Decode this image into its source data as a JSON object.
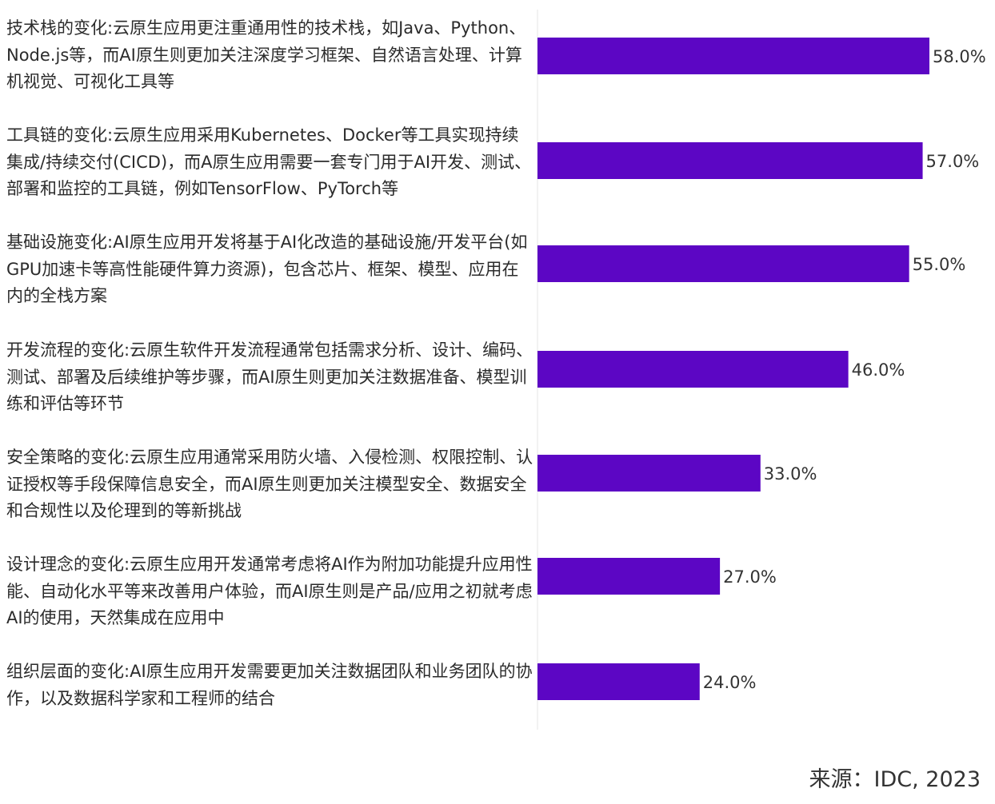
{
  "chart_data": {
    "type": "bar",
    "orientation": "horizontal",
    "categories": [
      "技术栈的变化:云原生应用更注重通用性的技术栈，如Java、Python、Node.js等，而AI原生则更加关注深度学习框架、自然语言处理、计算机视觉、可视化工具等",
      "工具链的变化:云原生应用采用Kubernetes、Docker等工具实现持续集成/持续交付(CICD)，而A原生应用需要一套专门用于AI开发、测试、部署和监控的工具链，例如TensorFlow、PyTorch等",
      "基础设施变化:AI原生应用开发将基于AI化改造的基础设施/开发平台(如GPU加速卡等高性能硬件算力资源)，包含芯片、框架、模型、应用在内的全栈方案",
      "开发流程的变化:云原生软件开发流程通常包括需求分析、设计、编码、测试、部署及后续维护等步骤，而AI原生则更加关注数据准备、模型训练和评估等环节",
      "安全策略的变化:云原生应用通常采用防火墙、入侵检测、权限控制、认证授权等手段保障信息安全，而AI原生则更加关注模型安全、数据安全和合规性以及伦理到的等新挑战",
      "设计理念的变化:云原生应用开发通常考虑将AI作为附加功能提升应用性能、自动化水平等来改善用户体验，而AI原生则是产品/应用之初就考虑AI的使用，天然集成在应用中",
      "组织层面的变化:AI原生应用开发需要更加关注数据团队和业务团队的协作，以及数据科学家和工程师的结合"
    ],
    "values": [
      58.0,
      57.0,
      55.0,
      46.0,
      33.0,
      27.0,
      24.0
    ],
    "value_labels": [
      "58.0%",
      "57.0%",
      "55.0%",
      "46.0%",
      "33.0%",
      "27.0%",
      "24.0%"
    ],
    "xlim": [
      0,
      60
    ],
    "bar_color": "#5c06c4",
    "axis_color": "#e6e6e6",
    "grid": false,
    "legend": "none",
    "title": "",
    "xlabel": "",
    "ylabel": ""
  },
  "source": "来源：IDC, 2023"
}
